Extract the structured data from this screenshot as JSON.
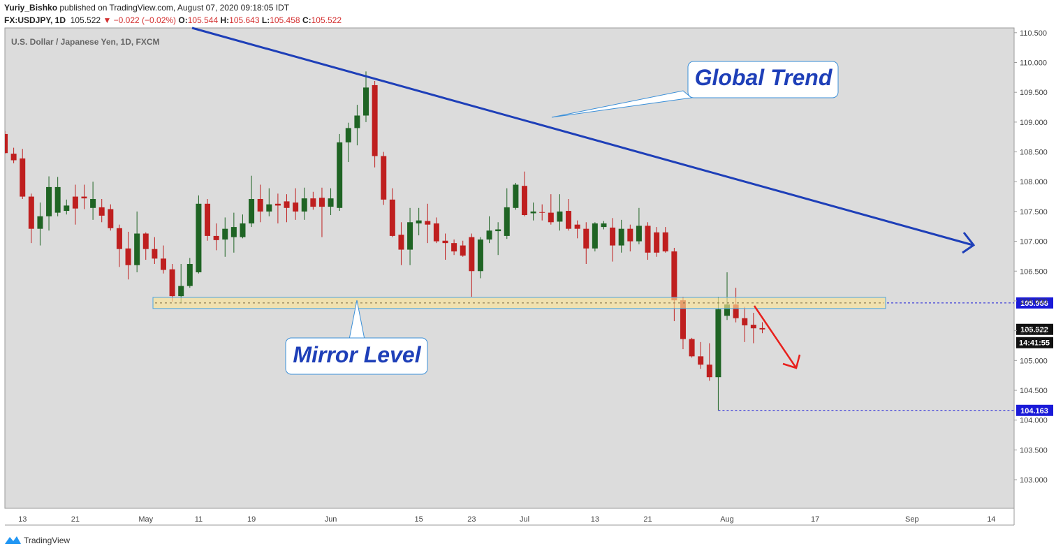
{
  "header": {
    "author": "Yuriy_Bishko",
    "published": " published on TradingView.com, August 07, 2020 09:18:05 IDT",
    "symbol": "FX:USDJPY, 1D",
    "price": "105.522",
    "change": "▼ −0.022 (−0.02%)",
    "ohlc": [
      {
        "label": "O:",
        "value": "105.544"
      },
      {
        "label": "H:",
        "value": "105.643"
      },
      {
        "label": "L:",
        "value": "105.458"
      },
      {
        "label": "C:",
        "value": "105.522"
      }
    ]
  },
  "chart_data": {
    "type": "candlestick",
    "subtitle": "U.S. Dollar / Japanese Yen, 1D, FXCM",
    "up_color": "#1f6424",
    "down_color": "#bf1f1f",
    "grid": false,
    "categories": [
      null,
      null,
      "13",
      null,
      null,
      null,
      null,
      null,
      "21",
      null,
      null,
      null,
      null,
      null,
      null,
      null,
      "May",
      null,
      null,
      null,
      null,
      null,
      "11",
      null,
      null,
      null,
      null,
      null,
      "19",
      null,
      null,
      null,
      null,
      null,
      null,
      null,
      null,
      "Jun",
      null,
      null,
      null,
      null,
      null,
      null,
      null,
      null,
      null,
      "15",
      null,
      null,
      null,
      null,
      null,
      "23",
      null,
      null,
      null,
      null,
      null,
      "Jul",
      null,
      null,
      null,
      null,
      null,
      null,
      null,
      "13",
      null,
      null,
      null,
      null,
      null,
      "21",
      null,
      null,
      null,
      null,
      null,
      null,
      null,
      null,
      "Aug",
      null,
      null,
      null,
      null,
      null,
      null,
      null,
      null,
      null,
      "17",
      null,
      null,
      null,
      null,
      null,
      null,
      null,
      null,
      null,
      null,
      "Sep",
      null,
      null,
      null,
      null,
      null,
      null,
      null,
      null,
      "14",
      null,
      null
    ],
    "open": [
      108.8,
      108.47,
      108.39,
      107.75,
      107.21,
      107.42,
      107.48,
      107.51,
      107.75,
      107.75,
      107.56,
      107.57,
      107.54,
      107.22,
      106.88,
      106.6,
      107.13,
      106.87,
      106.71,
      106.53,
      106.08,
      106.25,
      106.48,
      107.63,
      107.09,
      107.03,
      107.07,
      107.07,
      107.3,
      107.71,
      107.5,
      107.63,
      107.67,
      107.65,
      107.5,
      107.72,
      107.73,
      107.58,
      107.56,
      108.66,
      108.9,
      109.11,
      109.62,
      108.43,
      107.7,
      107.11,
      106.86,
      107.3,
      107.34,
      107.3,
      107.01,
      106.97,
      106.93,
      107.07,
      106.5,
      107.03,
      107.17,
      107.09,
      107.56,
      107.93,
      107.47,
      107.49,
      107.48,
      107.33,
      107.51,
      107.28,
      107.21,
      106.88,
      107.24,
      107.23,
      106.93,
      107.21,
      107.0,
      107.26,
      107.15,
      107.15,
      106.83,
      106.01,
      105.36,
      105.07,
      104.93,
      104.72,
      105.75,
      105.94,
      105.71,
      105.6,
      105.544,
      null,
      null,
      null,
      null,
      null,
      null,
      null,
      null,
      null,
      null,
      null,
      null,
      null,
      null,
      null,
      null,
      null,
      null,
      null,
      null,
      null,
      null,
      null,
      null,
      null,
      null,
      null,
      null
    ],
    "high": [
      108.85,
      108.57,
      108.55,
      107.8,
      107.65,
      108.09,
      108.08,
      107.7,
      107.95,
      107.95,
      108.0,
      107.71,
      107.62,
      107.28,
      107.16,
      107.5,
      107.15,
      107.07,
      106.93,
      106.62,
      106.62,
      106.72,
      107.77,
      107.71,
      107.3,
      107.4,
      107.48,
      107.45,
      108.1,
      107.95,
      107.89,
      107.8,
      107.79,
      107.89,
      107.9,
      107.83,
      107.9,
      107.89,
      108.8,
      108.99,
      109.29,
      109.85,
      109.69,
      108.5,
      107.89,
      107.32,
      107.56,
      107.56,
      107.63,
      107.4,
      107.13,
      107.03,
      107.01,
      107.13,
      107.07,
      107.42,
      107.32,
      107.89,
      107.98,
      108.17,
      107.65,
      107.62,
      107.79,
      107.79,
      107.71,
      107.35,
      107.32,
      107.32,
      107.34,
      107.39,
      107.36,
      107.28,
      107.56,
      107.32,
      107.24,
      107.24,
      106.89,
      106.07,
      105.38,
      105.31,
      105.29,
      106.07,
      106.48,
      106.22,
      105.9,
      105.8,
      105.643,
      null,
      null,
      null,
      null,
      null,
      null,
      null,
      null,
      null,
      null,
      null,
      null,
      null,
      null,
      null,
      null,
      null,
      null,
      null,
      null,
      null,
      null,
      null,
      null,
      null,
      null,
      null,
      null
    ],
    "low": [
      108.47,
      108.31,
      107.71,
      106.97,
      106.93,
      107.18,
      107.42,
      107.45,
      107.28,
      107.54,
      107.36,
      107.32,
      107.18,
      106.57,
      106.36,
      106.48,
      106.69,
      106.62,
      106.46,
      105.99,
      105.96,
      106.22,
      106.46,
      107.01,
      106.85,
      106.74,
      106.81,
      107.05,
      107.24,
      107.32,
      107.42,
      107.3,
      107.32,
      107.36,
      107.36,
      107.53,
      107.07,
      107.44,
      107.51,
      108.33,
      108.61,
      109.0,
      108.24,
      107.61,
      107.07,
      106.6,
      106.6,
      107.1,
      106.97,
      106.97,
      106.69,
      106.77,
      106.74,
      106.07,
      106.38,
      106.97,
      106.77,
      107.04,
      107.53,
      107.42,
      107.35,
      107.35,
      107.28,
      107.18,
      107.18,
      107.05,
      106.62,
      106.83,
      107.2,
      106.66,
      106.81,
      106.83,
      106.95,
      106.69,
      106.74,
      106.81,
      105.66,
      105.19,
      105.05,
      104.86,
      104.66,
      104.163,
      105.68,
      105.64,
      105.31,
      105.29,
      105.458,
      null,
      null,
      null,
      null,
      null,
      null,
      null,
      null,
      null,
      null,
      null,
      null,
      null,
      null,
      null,
      null,
      null,
      null,
      null,
      null,
      null,
      null,
      null,
      null,
      null,
      null,
      null,
      null
    ],
    "close": [
      108.48,
      108.36,
      107.75,
      107.21,
      107.42,
      107.91,
      107.91,
      107.6,
      107.55,
      107.72,
      107.71,
      107.43,
      107.22,
      106.87,
      106.6,
      107.13,
      106.87,
      106.71,
      106.52,
      106.08,
      106.25,
      106.62,
      107.63,
      107.09,
      107.02,
      107.21,
      107.24,
      107.3,
      107.71,
      107.5,
      107.62,
      107.6,
      107.56,
      107.5,
      107.72,
      107.58,
      107.58,
      107.72,
      108.66,
      108.9,
      109.11,
      109.58,
      108.43,
      107.7,
      107.09,
      106.86,
      107.32,
      107.35,
      107.28,
      107.0,
      106.97,
      106.83,
      106.76,
      106.5,
      107.03,
      107.18,
      107.2,
      107.57,
      107.95,
      107.44,
      107.5,
      107.48,
      107.32,
      107.5,
      107.21,
      107.21,
      106.88,
      107.3,
      107.3,
      106.93,
      107.21,
      107.0,
      107.26,
      106.81,
      106.81,
      106.83,
      106.01,
      105.36,
      105.07,
      104.93,
      104.72,
      105.86,
      105.94,
      105.71,
      105.59,
      105.54,
      105.522,
      null,
      null,
      null,
      null,
      null,
      null,
      null,
      null,
      null,
      null,
      null,
      null,
      null,
      null,
      null,
      null,
      null,
      null,
      null,
      null,
      null,
      null,
      null,
      null,
      null,
      null,
      null,
      null
    ],
    "ylim": [
      102.52,
      110.58
    ],
    "yticks": [
      {
        "value": 103,
        "label": "103.000"
      },
      {
        "value": 103.5,
        "label": "103.500"
      },
      {
        "value": 104,
        "label": "104.000"
      },
      {
        "value": 104.5,
        "label": "104.500"
      },
      {
        "value": 105,
        "label": "105.000"
      },
      {
        "value": 105.5,
        "label": "105.500"
      },
      {
        "value": 106,
        "label": "106.000"
      },
      {
        "value": 106.5,
        "label": "106.500"
      },
      {
        "value": 107,
        "label": "107.000"
      },
      {
        "value": 107.5,
        "label": "107.500"
      },
      {
        "value": 108,
        "label": "108.000"
      },
      {
        "value": 108.5,
        "label": "108.500"
      },
      {
        "value": 109,
        "label": "109.000"
      },
      {
        "value": 109.5,
        "label": "109.500"
      },
      {
        "value": 110,
        "label": "110.000"
      },
      {
        "value": 110.5,
        "label": "110.500"
      }
    ],
    "levels": [
      105.966,
      104.163
    ],
    "level_color": "#1a1ad8",
    "last_price": 105.522,
    "countdown": "14:41:55",
    "annotations": [
      "Global Trend",
      "Mirror Level"
    ]
  },
  "footer": {
    "brand": "TradingView"
  }
}
